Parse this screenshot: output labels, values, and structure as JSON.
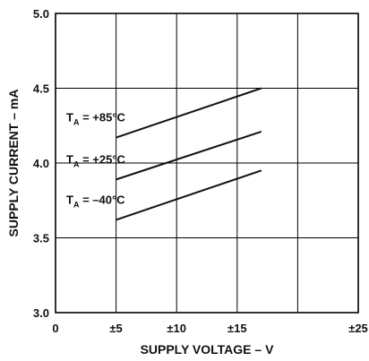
{
  "chart_data": {
    "type": "line",
    "xlabel": "SUPPLY VOLTAGE – V",
    "ylabel": "SUPPLY CURRENT – mA",
    "xlim": [
      0,
      25
    ],
    "ylim": [
      3.0,
      5.0
    ],
    "xticks": [
      0,
      5,
      10,
      15,
      25
    ],
    "xtick_labels": [
      "0",
      "±5",
      "±10",
      "±15",
      "±25"
    ],
    "yticks": [
      3.0,
      3.5,
      4.0,
      4.5,
      5.0
    ],
    "ytick_labels": [
      "3.0",
      "3.5",
      "4.0",
      "4.5",
      "5.0"
    ],
    "grid": true,
    "series": [
      {
        "name": "TA = +85°C",
        "sub": "A",
        "label_rest": " = +85°C",
        "color": "#111111",
        "x": [
          5,
          17
        ],
        "y": [
          4.17,
          4.5
        ]
      },
      {
        "name": "TA = +25°C",
        "sub": "A",
        "label_rest": " = +25°C",
        "color": "#111111",
        "x": [
          5,
          17
        ],
        "y": [
          3.89,
          4.21
        ]
      },
      {
        "name": "TA = –40°C",
        "sub": "A",
        "label_rest": " = –40°C",
        "color": "#111111",
        "x": [
          5,
          17
        ],
        "y": [
          3.62,
          3.95
        ]
      }
    ]
  }
}
